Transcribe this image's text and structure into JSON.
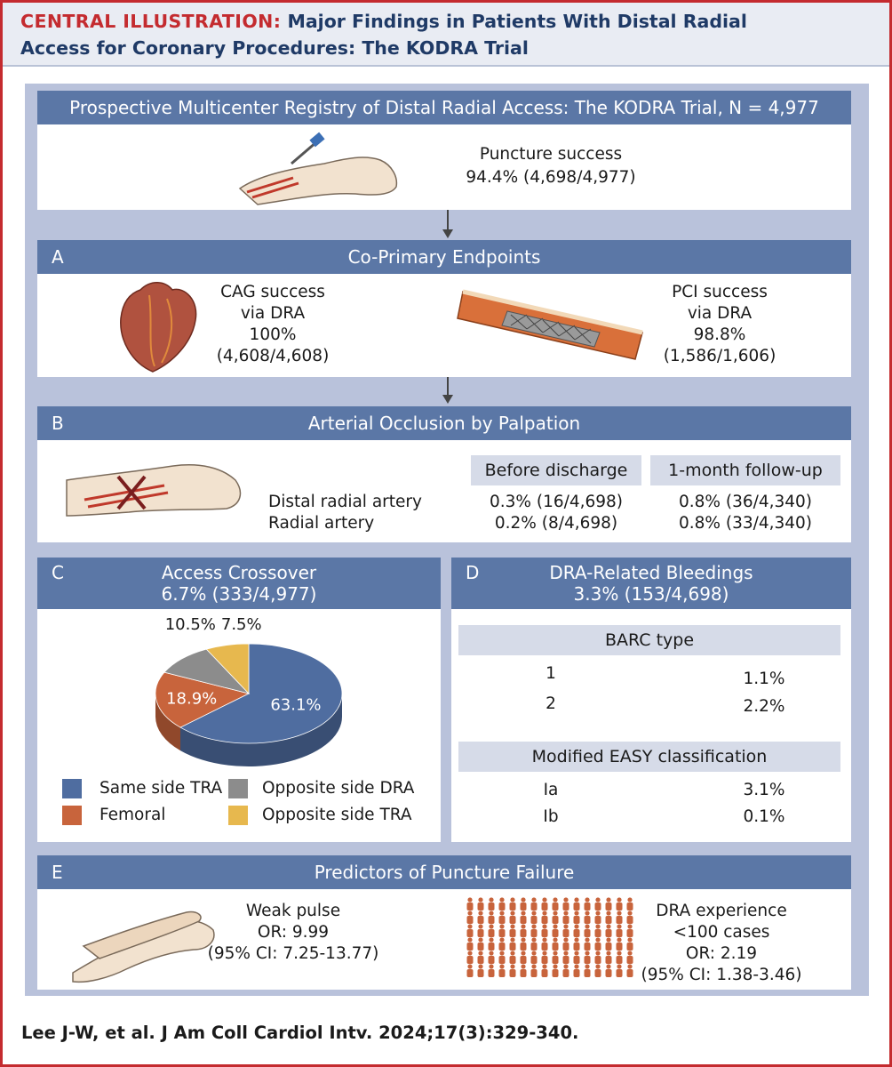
{
  "title": {
    "lead": "CENTRAL ILLUSTRATION:",
    "line1": "Major Findings in Patients With Distal Radial",
    "line2": "Access for Coronary Procedures: The KODRA Trial"
  },
  "registry": {
    "heading": "Prospective Multicenter Registry of Distal Radial Access: The KODRA Trial, N = 4,977",
    "puncture_label": "Puncture success",
    "puncture_value": "94.4% (4,698/4,977)"
  },
  "section_a": {
    "letter": "A",
    "heading": "Co-Primary Endpoints",
    "cag": [
      "CAG success",
      "via DRA",
      "100%",
      "(4,608/4,608)"
    ],
    "pci": [
      "PCI success",
      "via DRA",
      "98.8%",
      "(1,586/1,606)"
    ]
  },
  "section_b": {
    "letter": "B",
    "heading": "Arterial Occlusion by Palpation",
    "col1": "Before discharge",
    "col2": "1-month follow-up",
    "rows": [
      {
        "label": "Distal radial artery",
        "before": "0.3% (16/4,698)",
        "after": "0.8% (36/4,340)"
      },
      {
        "label": "Radial artery",
        "before": "0.2% (8/4,698)",
        "after": "0.8% (33/4,340)"
      }
    ]
  },
  "section_c": {
    "letter": "C",
    "heading_line1": "Access Crossover",
    "heading_line2": "6.7% (333/4,977)",
    "legend": [
      {
        "label": "Same side TRA",
        "color": "#4f6da0"
      },
      {
        "label": "Opposite side DRA",
        "color": "#8c8c8c"
      },
      {
        "label": "Femoral",
        "color": "#c8643c"
      },
      {
        "label": "Opposite side TRA",
        "color": "#e7b84e"
      }
    ]
  },
  "chart_data": {
    "type": "pie",
    "categories": [
      "Same side TRA",
      "Femoral",
      "Opposite side DRA",
      "Opposite side TRA"
    ],
    "values": [
      63.1,
      18.9,
      10.5,
      7.5
    ],
    "labels": [
      "63.1%",
      "18.9%",
      "10.5%",
      "7.5%"
    ],
    "colors": [
      "#4f6da0",
      "#c8643c",
      "#8c8c8c",
      "#e7b84e"
    ],
    "title": "",
    "legend_position": "bottom"
  },
  "section_d": {
    "letter": "D",
    "heading_line1": "DRA-Related Bleedings",
    "heading_line2": "3.3% (153/4,698)",
    "barc_header": "BARC type",
    "barc_rows": [
      {
        "label": "1",
        "value": "1.1%"
      },
      {
        "label": "2",
        "value": "2.2%"
      }
    ],
    "easy_header": "Modified EASY classification",
    "easy_rows": [
      {
        "label": "Ia",
        "value": "3.1%"
      },
      {
        "label": "Ib",
        "value": "0.1%"
      }
    ]
  },
  "section_e": {
    "letter": "E",
    "heading": "Predictors of Puncture Failure",
    "weak": [
      "Weak pulse",
      "OR: 9.99",
      "(95% CI: 7.25-13.77)"
    ],
    "exp": [
      "DRA experience",
      "<100 cases",
      "OR: 2.19",
      "(95% CI: 1.38-3.46)"
    ]
  },
  "citation": "Lee J-W, et al. J Am Coll Cardiol Intv. 2024;17(3):329-340."
}
